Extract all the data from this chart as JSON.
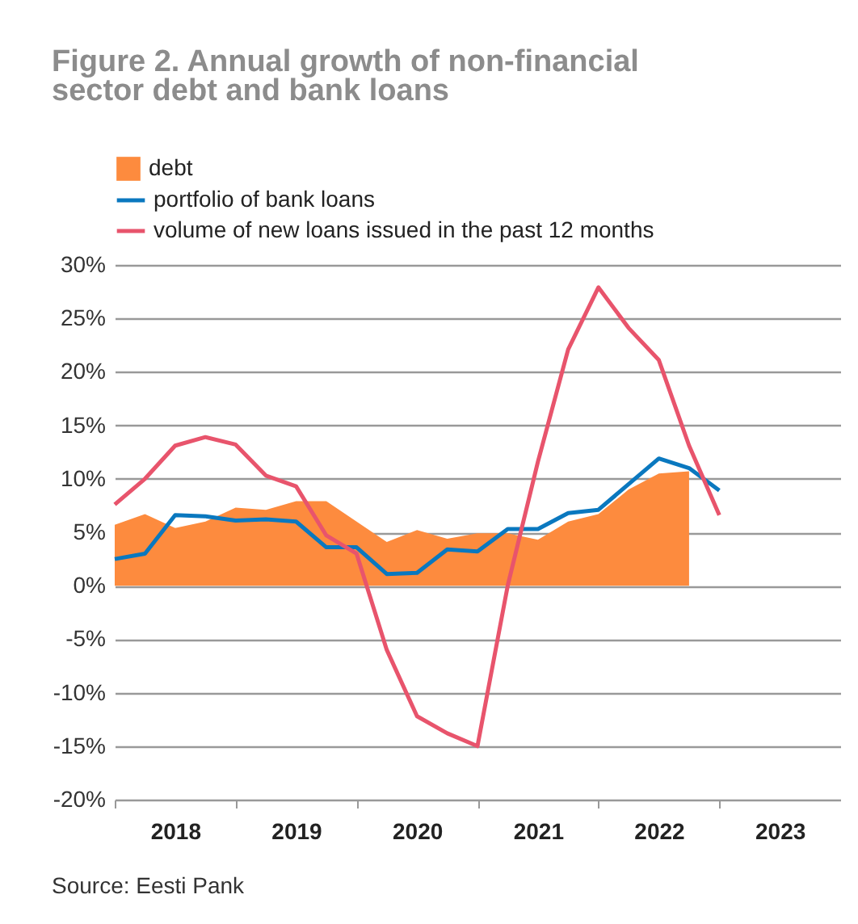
{
  "chart_data": {
    "type": "line",
    "title": "Figure 2. Annual growth of non-financial sector debt and bank loans",
    "annotations": [
      "Source: Eesti Pank"
    ],
    "x": [
      2018,
      2018.25,
      2018.5,
      2018.75,
      2019,
      2019.25,
      2019.5,
      2019.75,
      2020,
      2020.25,
      2020.5,
      2020.75,
      2021,
      2021.25,
      2021.5,
      2021.75,
      2022,
      2022.25,
      2022.5,
      2022.75,
      2023
    ],
    "series": [
      {
        "name": "debt",
        "type": "area",
        "color": "#fd8b3e",
        "x": [
          2018,
          2018.25,
          2018.5,
          2018.75,
          2019,
          2019.25,
          2019.5,
          2019.75,
          2020,
          2020.25,
          2020.5,
          2020.75,
          2021,
          2021.25,
          2021.5,
          2021.75,
          2022,
          2022.25,
          2022.5,
          2022.75
        ],
        "values": [
          5.7,
          6.7,
          5.4,
          6.0,
          7.3,
          7.1,
          7.9,
          7.9,
          6.0,
          4.1,
          5.2,
          4.4,
          4.9,
          4.9,
          4.3,
          6.0,
          6.7,
          9.0,
          10.5,
          10.7
        ]
      },
      {
        "name": "portfolio of bank loans",
        "color": "#0a78bf",
        "values": [
          2.5,
          3.0,
          6.6,
          6.5,
          6.1,
          6.2,
          6.0,
          3.6,
          3.6,
          1.1,
          1.2,
          3.4,
          3.2,
          5.3,
          5.3,
          6.8,
          7.1,
          9.5,
          11.9,
          11.0,
          8.9
        ]
      },
      {
        "name": "volume of new loans issued in the past 12 months",
        "color": "#e8546c",
        "values": [
          7.6,
          10.0,
          13.1,
          13.9,
          13.2,
          10.3,
          9.3,
          4.7,
          3.0,
          -6.0,
          -12.2,
          -13.8,
          -15.0,
          0.0,
          11.6,
          22.1,
          27.9,
          24.1,
          21.1,
          13.1,
          6.6
        ]
      }
    ],
    "xlim": [
      2018,
      2024
    ],
    "xticks": [
      {
        "value": 2018,
        "label": null
      },
      {
        "value": 2018.5,
        "label": "2018"
      },
      {
        "value": 2019,
        "label": null
      },
      {
        "value": 2019.5,
        "label": "2019"
      },
      {
        "value": 2020,
        "label": null
      },
      {
        "value": 2020.5,
        "label": "2020"
      },
      {
        "value": 2021,
        "label": null
      },
      {
        "value": 2021.5,
        "label": "2021"
      },
      {
        "value": 2022,
        "label": null
      },
      {
        "value": 2022.5,
        "label": "2022"
      },
      {
        "value": 2023,
        "label": null
      },
      {
        "value": 2023.5,
        "label": "2023"
      }
    ],
    "ylim": [
      -20,
      30
    ],
    "yticks": [
      {
        "value": -20,
        "label": "-20%"
      },
      {
        "value": -15,
        "label": "-15%"
      },
      {
        "value": -10,
        "label": "-10%"
      },
      {
        "value": -5,
        "label": "-5%"
      },
      {
        "value": 0,
        "label": "0%"
      },
      {
        "value": 5,
        "label": "5%"
      },
      {
        "value": 10,
        "label": "10%"
      },
      {
        "value": 15,
        "label": "15%"
      },
      {
        "value": 20,
        "label": "20%"
      },
      {
        "value": 25,
        "label": "25%"
      },
      {
        "value": 30,
        "label": "30%"
      }
    ],
    "grid": "y",
    "legend": "top left",
    "marker": "none",
    "line_style": "solid"
  }
}
